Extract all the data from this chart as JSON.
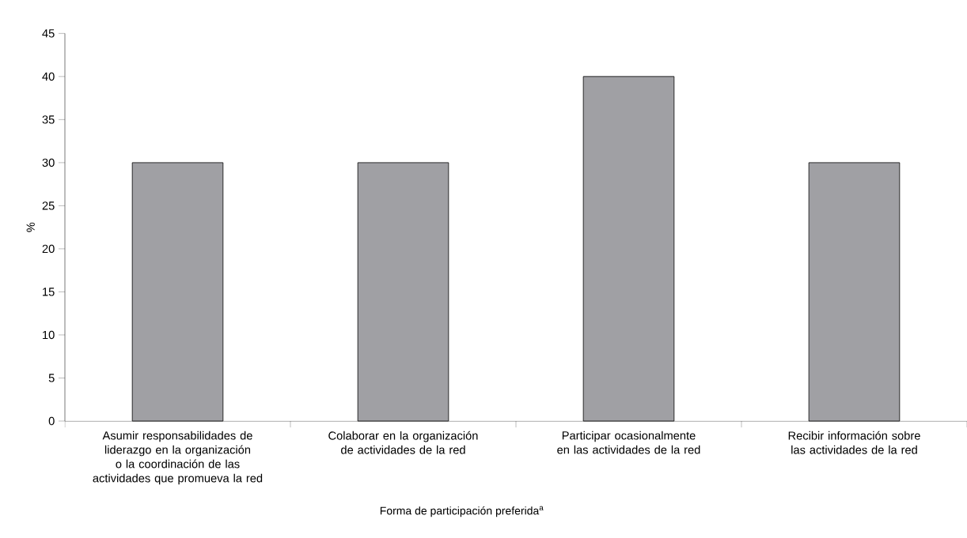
{
  "chart_data": {
    "type": "bar",
    "xlabel": "Forma de participación preferida$^{a}$",
    "ylabel": "%",
    "categories": [
      "Asumir responsabilidades de liderazgo en la organización o la coordinación de las actividades que promueva la red",
      "Colaborar en la organización de actividades de la red",
      "Participar ocasionalmente en las actividades de la red",
      "Recibir información sobre las actividades de la red"
    ],
    "values": [
      30,
      30,
      40,
      30
    ],
    "color": "#a0a0a4",
    "ylim": [
      0,
      45
    ],
    "yticks": [
      0,
      5,
      10,
      15,
      20,
      25,
      30,
      35,
      40,
      45
    ],
    "grid": false
  }
}
